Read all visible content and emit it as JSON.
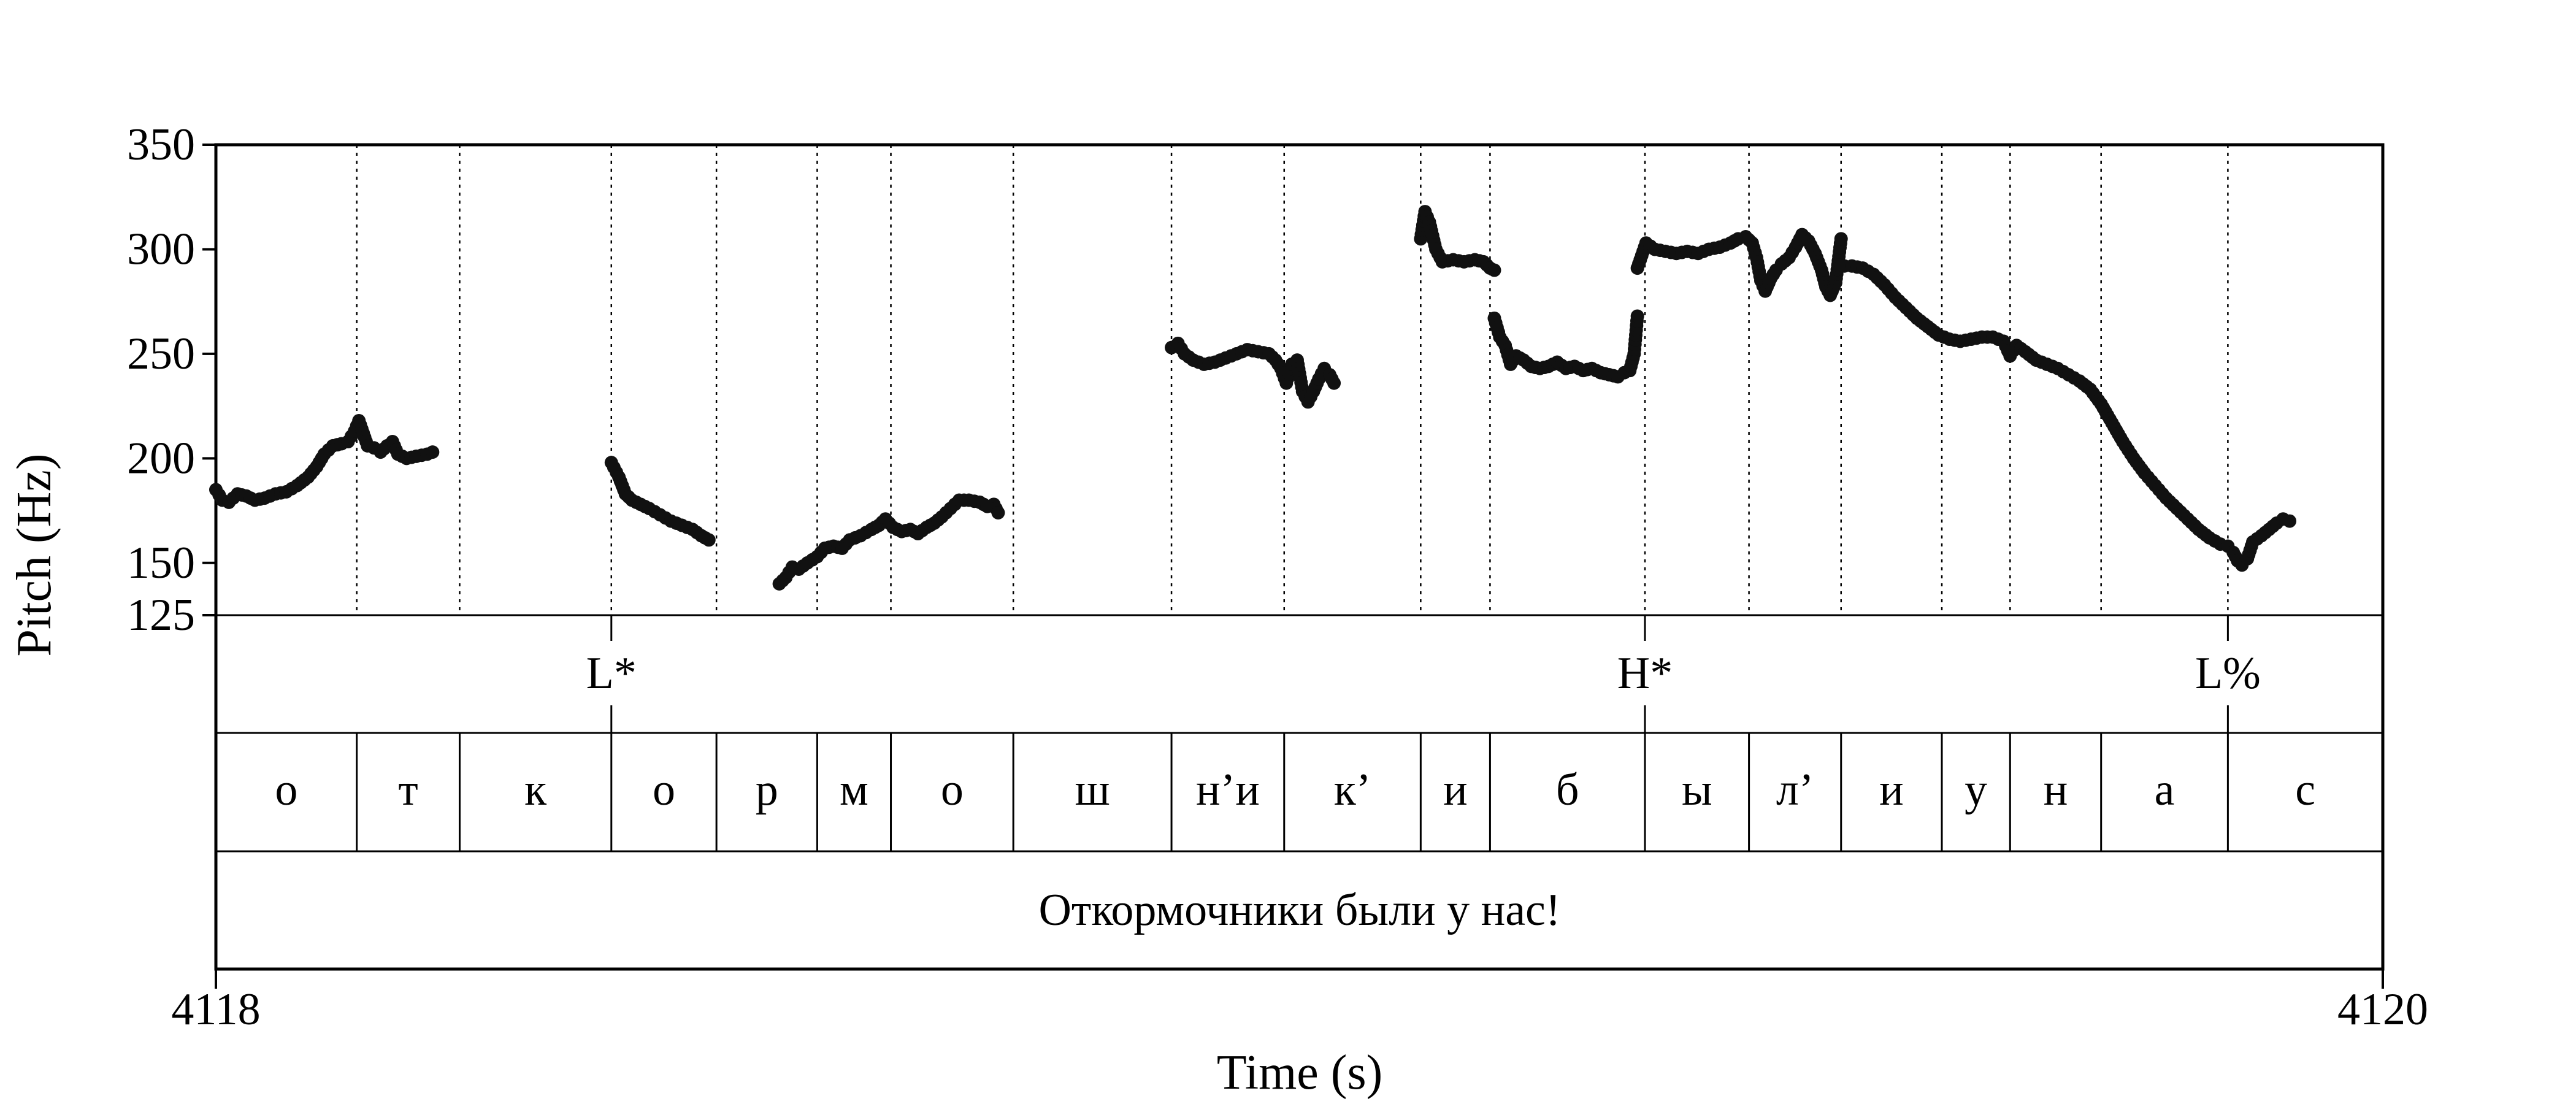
{
  "chart_data": {
    "type": "scatter",
    "title": "",
    "xlabel": "Time (s)",
    "ylabel": "Pitch (Hz)",
    "xlim": [
      4118,
      4120
    ],
    "ylim": [
      125,
      350
    ],
    "x_tick_labels": [
      "4118",
      "4120"
    ],
    "y_ticks": [
      125,
      150,
      200,
      250,
      300,
      350
    ],
    "y_tick_labels": [
      "125",
      "150",
      "200",
      "250",
      "300",
      "350"
    ],
    "grid": "dotted vertical lines at segment boundaries",
    "point_color": "#111111",
    "boundaries": [
      4118.13,
      4118.225,
      4118.365,
      4118.462,
      4118.555,
      4118.623,
      4118.736,
      4118.882,
      4118.986,
      4119.112,
      4119.176,
      4119.319,
      4119.415,
      4119.5,
      4119.593,
      4119.656,
      4119.74,
      4119.857
    ],
    "tones": [
      {
        "label": "L*",
        "time": 4118.365
      },
      {
        "label": "H*",
        "time": 4119.319
      },
      {
        "label": "L%",
        "time": 4119.857
      }
    ],
    "segments": [
      {
        "label": "о",
        "start": 4118.0,
        "end": 4118.13
      },
      {
        "label": "т",
        "start": 4118.13,
        "end": 4118.225
      },
      {
        "label": "к",
        "start": 4118.225,
        "end": 4118.365
      },
      {
        "label": "о",
        "start": 4118.365,
        "end": 4118.462
      },
      {
        "label": "р",
        "start": 4118.462,
        "end": 4118.555
      },
      {
        "label": "м",
        "start": 4118.555,
        "end": 4118.623
      },
      {
        "label": "о",
        "start": 4118.623,
        "end": 4118.736
      },
      {
        "label": "ш",
        "start": 4118.736,
        "end": 4118.882
      },
      {
        "label": "н’и",
        "start": 4118.882,
        "end": 4118.986
      },
      {
        "label": "к’",
        "start": 4118.986,
        "end": 4119.112
      },
      {
        "label": "и",
        "start": 4119.112,
        "end": 4119.176
      },
      {
        "label": "б",
        "start": 4119.176,
        "end": 4119.319
      },
      {
        "label": "ы",
        "start": 4119.319,
        "end": 4119.415
      },
      {
        "label": "л’",
        "start": 4119.415,
        "end": 4119.5
      },
      {
        "label": "и",
        "start": 4119.5,
        "end": 4119.593
      },
      {
        "label": "у",
        "start": 4119.593,
        "end": 4119.656
      },
      {
        "label": "н",
        "start": 4119.656,
        "end": 4119.74
      },
      {
        "label": "а",
        "start": 4119.74,
        "end": 4119.857
      },
      {
        "label": "с",
        "start": 4119.857,
        "end": 4120.0
      }
    ],
    "sentence": "Откормочники были у нас!",
    "pitch_contours": [
      [
        [
          4118.0,
          185
        ],
        [
          4118.006,
          180
        ],
        [
          4118.012,
          179
        ],
        [
          4118.02,
          183
        ],
        [
          4118.028,
          182
        ],
        [
          4118.036,
          180
        ],
        [
          4118.045,
          181
        ],
        [
          4118.055,
          183
        ],
        [
          4118.065,
          184
        ],
        [
          4118.075,
          187
        ],
        [
          4118.085,
          191
        ],
        [
          4118.093,
          196
        ],
        [
          4118.1,
          202
        ],
        [
          4118.108,
          206
        ],
        [
          4118.116,
          207
        ],
        [
          4118.122,
          208
        ],
        [
          4118.128,
          213
        ],
        [
          4118.132,
          218
        ],
        [
          4118.136,
          212
        ],
        [
          4118.14,
          206
        ],
        [
          4118.146,
          205
        ],
        [
          4118.152,
          203
        ],
        [
          4118.158,
          206
        ],
        [
          4118.163,
          208
        ],
        [
          4118.168,
          202
        ],
        [
          4118.176,
          200
        ],
        [
          4118.185,
          201
        ],
        [
          4118.195,
          202
        ],
        [
          4118.2,
          203
        ]
      ],
      [
        [
          4118.365,
          198
        ],
        [
          4118.372,
          191
        ],
        [
          4118.378,
          183
        ],
        [
          4118.384,
          180
        ],
        [
          4118.392,
          178
        ],
        [
          4118.4,
          176
        ],
        [
          4118.41,
          173
        ],
        [
          4118.42,
          170
        ],
        [
          4118.43,
          168
        ],
        [
          4118.44,
          166
        ],
        [
          4118.448,
          163
        ],
        [
          4118.455,
          161
        ]
      ],
      [
        [
          4118.52,
          140
        ],
        [
          4118.526,
          143
        ],
        [
          4118.532,
          148
        ],
        [
          4118.538,
          147
        ],
        [
          4118.546,
          150
        ],
        [
          4118.555,
          153
        ],
        [
          4118.562,
          157
        ],
        [
          4118.57,
          158
        ],
        [
          4118.578,
          157
        ],
        [
          4118.585,
          161
        ],
        [
          4118.595,
          163
        ],
        [
          4118.605,
          166
        ],
        [
          4118.612,
          168
        ],
        [
          4118.618,
          171
        ],
        [
          4118.625,
          167
        ],
        [
          4118.633,
          165
        ],
        [
          4118.641,
          166
        ],
        [
          4118.648,
          164
        ],
        [
          4118.656,
          167
        ],
        [
          4118.663,
          169
        ],
        [
          4118.67,
          172
        ],
        [
          4118.678,
          176
        ],
        [
          4118.686,
          180
        ],
        [
          4118.695,
          180
        ],
        [
          4118.705,
          179
        ],
        [
          4118.712,
          177
        ],
        [
          4118.718,
          178
        ],
        [
          4118.722,
          174
        ]
      ],
      [
        [
          4118.882,
          253
        ],
        [
          4118.888,
          255
        ],
        [
          4118.894,
          250
        ],
        [
          4118.902,
          247
        ],
        [
          4118.912,
          245
        ],
        [
          4118.922,
          246
        ],
        [
          4118.932,
          248
        ],
        [
          4118.942,
          250
        ],
        [
          4118.952,
          252
        ],
        [
          4118.962,
          251
        ],
        [
          4118.972,
          250
        ],
        [
          4118.978,
          247
        ],
        [
          4118.983,
          243
        ],
        [
          4118.988,
          236
        ],
        [
          4118.993,
          245
        ],
        [
          4118.998,
          247
        ],
        [
          4119.003,
          232
        ],
        [
          4119.008,
          227
        ],
        [
          4119.013,
          232
        ],
        [
          4119.018,
          238
        ],
        [
          4119.023,
          243
        ],
        [
          4119.028,
          240
        ],
        [
          4119.032,
          236
        ]
      ],
      [
        [
          4119.112,
          305
        ],
        [
          4119.116,
          318
        ],
        [
          4119.12,
          313
        ],
        [
          4119.126,
          300
        ],
        [
          4119.132,
          294
        ],
        [
          4119.142,
          295
        ],
        [
          4119.152,
          294
        ],
        [
          4119.162,
          295
        ],
        [
          4119.17,
          294
        ],
        [
          4119.176,
          291
        ],
        [
          4119.18,
          290
        ]
      ],
      [
        [
          4119.18,
          267
        ],
        [
          4119.185,
          258
        ],
        [
          4119.19,
          254
        ],
        [
          4119.195,
          245
        ],
        [
          4119.2,
          249
        ],
        [
          4119.207,
          247
        ],
        [
          4119.214,
          244
        ],
        [
          4119.222,
          243
        ],
        [
          4119.23,
          244
        ],
        [
          4119.238,
          246
        ],
        [
          4119.246,
          243
        ],
        [
          4119.254,
          244
        ],
        [
          4119.262,
          242
        ],
        [
          4119.27,
          243
        ],
        [
          4119.278,
          241
        ],
        [
          4119.286,
          240
        ],
        [
          4119.294,
          239
        ],
        [
          4119.3,
          241
        ],
        [
          4119.305,
          242
        ],
        [
          4119.309,
          250
        ],
        [
          4119.312,
          268
        ]
      ],
      [
        [
          4119.312,
          291
        ],
        [
          4119.316,
          297
        ],
        [
          4119.32,
          303
        ],
        [
          4119.328,
          300
        ],
        [
          4119.338,
          299
        ],
        [
          4119.348,
          298
        ],
        [
          4119.358,
          299
        ],
        [
          4119.368,
          298
        ],
        [
          4119.378,
          300
        ],
        [
          4119.388,
          301
        ],
        [
          4119.398,
          303
        ],
        [
          4119.405,
          305
        ],
        [
          4119.412,
          306
        ],
        [
          4119.418,
          303
        ],
        [
          4119.422,
          296
        ],
        [
          4119.426,
          285
        ],
        [
          4119.43,
          280
        ],
        [
          4119.435,
          286
        ],
        [
          4119.44,
          290
        ],
        [
          4119.445,
          293
        ],
        [
          4119.452,
          296
        ],
        [
          4119.458,
          301
        ],
        [
          4119.464,
          307
        ],
        [
          4119.47,
          304
        ],
        [
          4119.476,
          298
        ],
        [
          4119.482,
          290
        ],
        [
          4119.486,
          282
        ],
        [
          4119.49,
          278
        ],
        [
          4119.495,
          284
        ],
        [
          4119.5,
          305
        ]
      ],
      [
        [
          4119.503,
          292
        ],
        [
          4119.51,
          292
        ],
        [
          4119.52,
          291
        ],
        [
          4119.53,
          288
        ],
        [
          4119.54,
          283
        ],
        [
          4119.55,
          277
        ],
        [
          4119.56,
          272
        ],
        [
          4119.57,
          267
        ],
        [
          4119.58,
          263
        ],
        [
          4119.59,
          259
        ],
        [
          4119.6,
          257
        ],
        [
          4119.61,
          256
        ],
        [
          4119.62,
          257
        ],
        [
          4119.63,
          258
        ],
        [
          4119.64,
          258
        ],
        [
          4119.65,
          256
        ],
        [
          4119.656,
          249
        ],
        [
          4119.662,
          254
        ],
        [
          4119.67,
          251
        ],
        [
          4119.68,
          247
        ],
        [
          4119.69,
          245
        ],
        [
          4119.7,
          243
        ],
        [
          4119.71,
          240
        ],
        [
          4119.72,
          237
        ],
        [
          4119.73,
          233
        ],
        [
          4119.74,
          226
        ],
        [
          4119.75,
          217
        ],
        [
          4119.76,
          208
        ],
        [
          4119.77,
          200
        ],
        [
          4119.78,
          193
        ],
        [
          4119.79,
          187
        ],
        [
          4119.8,
          181
        ],
        [
          4119.81,
          176
        ],
        [
          4119.82,
          171
        ],
        [
          4119.83,
          166
        ],
        [
          4119.84,
          162
        ],
        [
          4119.85,
          159
        ],
        [
          4119.857,
          158
        ],
        [
          4119.862,
          155
        ],
        [
          4119.866,
          151
        ],
        [
          4119.87,
          149
        ],
        [
          4119.875,
          152
        ],
        [
          4119.88,
          160
        ],
        [
          4119.888,
          163
        ],
        [
          4119.895,
          166
        ],
        [
          4119.902,
          169
        ],
        [
          4119.908,
          171
        ],
        [
          4119.914,
          170
        ]
      ]
    ]
  }
}
